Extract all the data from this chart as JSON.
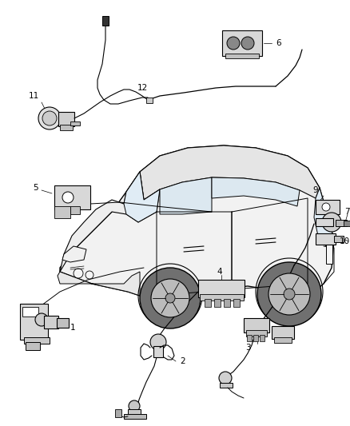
{
  "background_color": "#ffffff",
  "line_color": "#000000",
  "fig_width": 4.38,
  "fig_height": 5.33,
  "dpi": 100,
  "car": {
    "body_fill": "#f5f5f5",
    "roof_fill": "#e8e8e8",
    "window_fill": "#ddeeff",
    "wheel_fill": "#555555",
    "rim_fill": "#cccccc"
  },
  "parts_fill": "#d8d8d8",
  "label_fontsize": 7.5,
  "leader_lw": 0.6,
  "part_lw": 0.8
}
